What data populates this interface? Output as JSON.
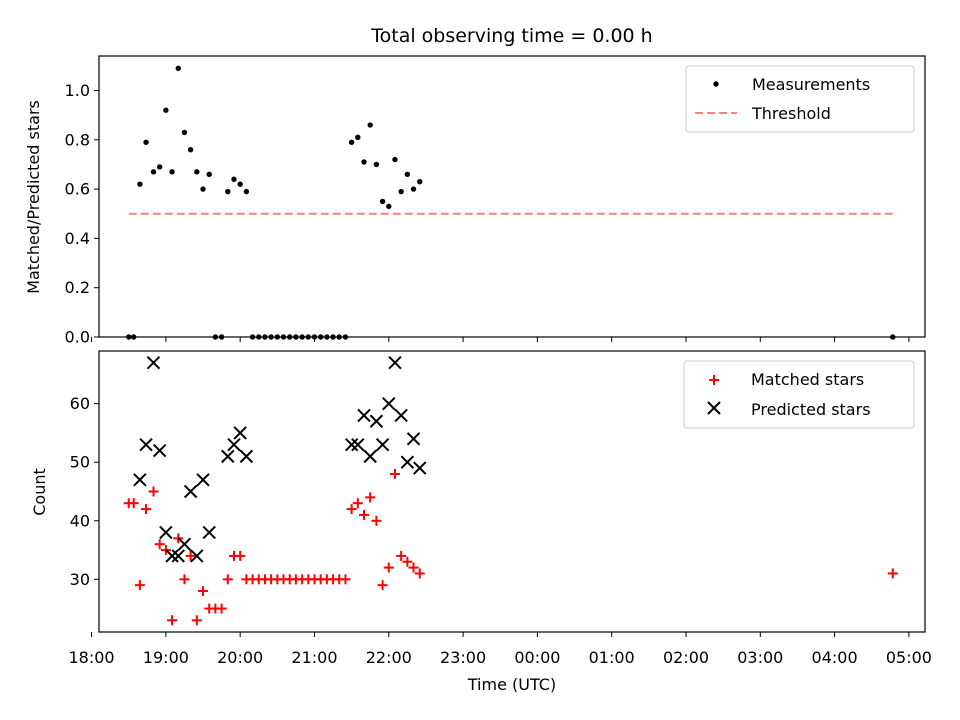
{
  "chart_data": [
    {
      "type": "scatter",
      "title": "Total observing time = 0.00 h",
      "ylabel": "Matched/Predicted stars",
      "ylim": [
        0,
        1.14
      ],
      "yticks": [
        "0.0",
        "0.2",
        "0.4",
        "0.6",
        "0.8",
        "1.0"
      ],
      "xlim": [
        "18:06",
        "05:13"
      ],
      "shares_x_axis_with": "bottom panel",
      "grid": false,
      "legend_position": "top-right",
      "legend": [
        {
          "label": "Measurements",
          "marker": "dot",
          "color": "#000000"
        },
        {
          "label": "Threshold",
          "marker": "dashed-line",
          "color": "#ff8080"
        }
      ],
      "series": [
        {
          "name": "Measurements",
          "marker": "dot",
          "color": "#000000",
          "points": [
            [
              "18:30",
              0.0
            ],
            [
              "18:34",
              0.0
            ],
            [
              "18:39",
              0.62
            ],
            [
              "18:44",
              0.79
            ],
            [
              "18:50",
              0.67
            ],
            [
              "18:55",
              0.69
            ],
            [
              "19:00",
              0.92
            ],
            [
              "19:05",
              0.67
            ],
            [
              "19:10",
              1.09
            ],
            [
              "19:15",
              0.83
            ],
            [
              "19:20",
              0.76
            ],
            [
              "19:25",
              0.67
            ],
            [
              "19:30",
              0.6
            ],
            [
              "19:35",
              0.66
            ],
            [
              "19:40",
              0.0
            ],
            [
              "19:45",
              0.0
            ],
            [
              "19:50",
              0.59
            ],
            [
              "19:55",
              0.64
            ],
            [
              "20:00",
              0.62
            ],
            [
              "20:05",
              0.59
            ],
            [
              "20:10",
              0.0
            ],
            [
              "20:15",
              0.0
            ],
            [
              "20:20",
              0.0
            ],
            [
              "20:25",
              0.0
            ],
            [
              "20:30",
              0.0
            ],
            [
              "20:35",
              0.0
            ],
            [
              "20:40",
              0.0
            ],
            [
              "20:45",
              0.0
            ],
            [
              "20:50",
              0.0
            ],
            [
              "20:55",
              0.0
            ],
            [
              "21:00",
              0.0
            ],
            [
              "21:05",
              0.0
            ],
            [
              "21:10",
              0.0
            ],
            [
              "21:15",
              0.0
            ],
            [
              "21:20",
              0.0
            ],
            [
              "21:25",
              0.0
            ],
            [
              "21:30",
              0.79
            ],
            [
              "21:35",
              0.81
            ],
            [
              "21:40",
              0.71
            ],
            [
              "21:45",
              0.86
            ],
            [
              "21:50",
              0.7
            ],
            [
              "21:55",
              0.55
            ],
            [
              "22:00",
              0.53
            ],
            [
              "22:05",
              0.72
            ],
            [
              "22:10",
              0.59
            ],
            [
              "22:15",
              0.66
            ],
            [
              "22:20",
              0.6
            ],
            [
              "22:25",
              0.63
            ],
            [
              "04:47",
              0.0
            ]
          ]
        },
        {
          "name": "Threshold",
          "style": "dashed",
          "color": "#ff8080",
          "points": [
            [
              "18:30",
              0.5
            ],
            [
              "04:47",
              0.5
            ]
          ]
        }
      ]
    },
    {
      "type": "scatter",
      "xlabel": "Time (UTC)",
      "ylabel": "Count",
      "ylim": [
        21,
        69
      ],
      "yticks": [
        "30",
        "40",
        "50",
        "60"
      ],
      "xticks": [
        "18:00",
        "19:00",
        "20:00",
        "21:00",
        "22:00",
        "23:00",
        "00:00",
        "01:00",
        "02:00",
        "03:00",
        "04:00",
        "05:00"
      ],
      "xlim": [
        "18:06",
        "05:13"
      ],
      "grid": false,
      "legend_position": "top-right",
      "legend": [
        {
          "label": "Matched stars",
          "marker": "plus",
          "color": "#ff0000"
        },
        {
          "label": "Predicted stars",
          "marker": "x",
          "color": "#000000"
        }
      ],
      "series": [
        {
          "name": "Matched stars",
          "marker": "plus",
          "color": "#ff0000",
          "points": [
            [
              "18:30",
              43
            ],
            [
              "18:34",
              43
            ],
            [
              "18:39",
              29
            ],
            [
              "18:44",
              42
            ],
            [
              "18:50",
              45
            ],
            [
              "18:55",
              36
            ],
            [
              "19:00",
              35
            ],
            [
              "19:05",
              23
            ],
            [
              "19:10",
              37
            ],
            [
              "19:15",
              30
            ],
            [
              "19:20",
              34
            ],
            [
              "19:25",
              23
            ],
            [
              "19:30",
              28
            ],
            [
              "19:35",
              25
            ],
            [
              "19:40",
              25
            ],
            [
              "19:45",
              25
            ],
            [
              "19:50",
              30
            ],
            [
              "19:55",
              34
            ],
            [
              "20:00",
              34
            ],
            [
              "20:05",
              30
            ],
            [
              "20:10",
              30
            ],
            [
              "20:15",
              30
            ],
            [
              "20:20",
              30
            ],
            [
              "20:25",
              30
            ],
            [
              "20:30",
              30
            ],
            [
              "20:35",
              30
            ],
            [
              "20:40",
              30
            ],
            [
              "20:45",
              30
            ],
            [
              "20:50",
              30
            ],
            [
              "20:55",
              30
            ],
            [
              "21:00",
              30
            ],
            [
              "21:05",
              30
            ],
            [
              "21:10",
              30
            ],
            [
              "21:15",
              30
            ],
            [
              "21:20",
              30
            ],
            [
              "21:25",
              30
            ],
            [
              "21:30",
              42
            ],
            [
              "21:35",
              43
            ],
            [
              "21:40",
              41
            ],
            [
              "21:45",
              44
            ],
            [
              "21:50",
              40
            ],
            [
              "21:55",
              29
            ],
            [
              "22:00",
              32
            ],
            [
              "22:05",
              48
            ],
            [
              "22:10",
              34
            ],
            [
              "22:15",
              33
            ],
            [
              "22:20",
              32
            ],
            [
              "22:25",
              31
            ],
            [
              "04:47",
              31
            ]
          ]
        },
        {
          "name": "Predicted stars",
          "marker": "x",
          "color": "#000000",
          "points": [
            [
              "18:39",
              47
            ],
            [
              "18:44",
              53
            ],
            [
              "18:50",
              67
            ],
            [
              "18:55",
              52
            ],
            [
              "19:00",
              38
            ],
            [
              "19:05",
              34
            ],
            [
              "19:10",
              34
            ],
            [
              "19:15",
              36
            ],
            [
              "19:20",
              45
            ],
            [
              "19:25",
              34
            ],
            [
              "19:30",
              47
            ],
            [
              "19:35",
              38
            ],
            [
              "19:50",
              51
            ],
            [
              "19:55",
              53
            ],
            [
              "20:00",
              55
            ],
            [
              "20:05",
              51
            ],
            [
              "21:30",
              53
            ],
            [
              "21:35",
              53
            ],
            [
              "21:40",
              58
            ],
            [
              "21:45",
              51
            ],
            [
              "21:50",
              57
            ],
            [
              "21:55",
              53
            ],
            [
              "22:00",
              60
            ],
            [
              "22:05",
              67
            ],
            [
              "22:10",
              58
            ],
            [
              "22:15",
              50
            ],
            [
              "22:20",
              54
            ],
            [
              "22:25",
              49
            ]
          ]
        }
      ]
    }
  ]
}
